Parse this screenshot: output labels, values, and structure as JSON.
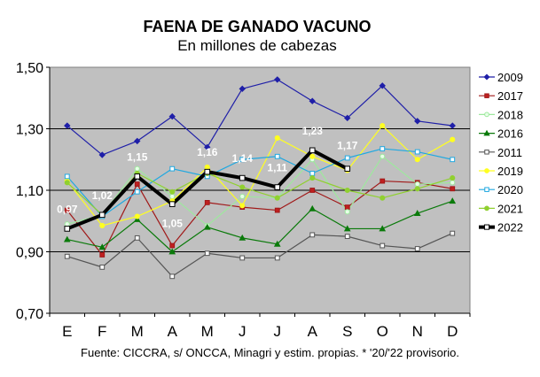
{
  "chart_data": {
    "type": "line",
    "title": "FAENA DE GANADO VACUNO",
    "subtitle": "En millones de cabezas",
    "source": "Fuente: CICCRA, s/ ONCCA, Minagri y estim. propias. * '20/'22 provisorio.",
    "categories": [
      "E",
      "F",
      "M",
      "A",
      "M",
      "J",
      "J",
      "A",
      "S",
      "O",
      "N",
      "D"
    ],
    "ylim": [
      0.7,
      1.5
    ],
    "yticks": [
      "0,70",
      "0,90",
      "1,10",
      "1,30",
      "1,50"
    ],
    "ytick_values": [
      0.7,
      0.9,
      1.1,
      1.3,
      1.5
    ],
    "legend_position": "right",
    "series": [
      {
        "name": "2009",
        "color": "#1f1fa8",
        "marker": "diamond",
        "marker_fill": "#1f1fa8",
        "values": [
          1.31,
          1.215,
          1.26,
          1.34,
          1.24,
          1.43,
          1.46,
          1.39,
          1.335,
          1.44,
          1.325,
          1.31
        ]
      },
      {
        "name": "2017",
        "color": "#a01818",
        "marker": "square",
        "marker_fill": "#c02020",
        "values": [
          1.035,
          0.89,
          1.12,
          0.92,
          1.06,
          1.045,
          1.035,
          1.1,
          1.045,
          1.13,
          1.125,
          1.105
        ]
      },
      {
        "name": "2018",
        "color": "#9ee89e",
        "marker": "circle",
        "marker_fill": "#e8ffe8",
        "values": [
          0.99,
          1.02,
          1.17,
          1.08,
          0.985,
          1.08,
          1.075,
          1.2,
          1.03,
          1.21,
          1.12,
          1.125
        ]
      },
      {
        "name": "2016",
        "color": "#0a7a0a",
        "marker": "triangle",
        "marker_fill": "#0a7a0a",
        "values": [
          0.94,
          0.915,
          1.005,
          0.9,
          0.98,
          0.945,
          0.925,
          1.04,
          0.975,
          0.975,
          1.025,
          1.065
        ]
      },
      {
        "name": "2011",
        "color": "#555555",
        "marker": "square",
        "marker_fill": "#ffffff",
        "values": [
          0.885,
          0.85,
          0.945,
          0.82,
          0.895,
          0.88,
          0.88,
          0.955,
          0.95,
          0.92,
          0.91,
          0.96
        ]
      },
      {
        "name": "2019",
        "color": "#ffff20",
        "marker": "circle",
        "marker_fill": "#ffff20",
        "values": [
          1.13,
          0.985,
          1.015,
          1.065,
          1.175,
          1.05,
          1.27,
          1.21,
          1.165,
          1.31,
          1.2,
          1.265
        ]
      },
      {
        "name": "2020",
        "color": "#20a8e0",
        "marker": "square",
        "marker_fill": "#ffffff",
        "values": [
          1.145,
          1.015,
          1.095,
          1.17,
          1.145,
          1.2,
          1.21,
          1.155,
          1.205,
          1.235,
          1.225,
          1.2
        ]
      },
      {
        "name": "2021",
        "color": "#90d030",
        "marker": "circle",
        "marker_fill": "#90d030",
        "values": [
          1.125,
          1.02,
          1.155,
          1.095,
          1.155,
          1.11,
          1.075,
          1.14,
          1.1,
          1.075,
          1.105,
          1.14
        ]
      },
      {
        "name": "2022",
        "color": "#000000",
        "marker": "square",
        "marker_fill": "#ffffff",
        "thick": true,
        "values": [
          0.975,
          1.02,
          1.145,
          1.055,
          1.16,
          1.14,
          1.11,
          1.23,
          1.17,
          null,
          null,
          null
        ],
        "data_labels": [
          "0,97",
          "1,02",
          "1,15",
          "1,05",
          "1,16",
          "1,14",
          "1,11",
          "1,23",
          "1,17",
          null,
          null,
          null
        ]
      }
    ]
  }
}
